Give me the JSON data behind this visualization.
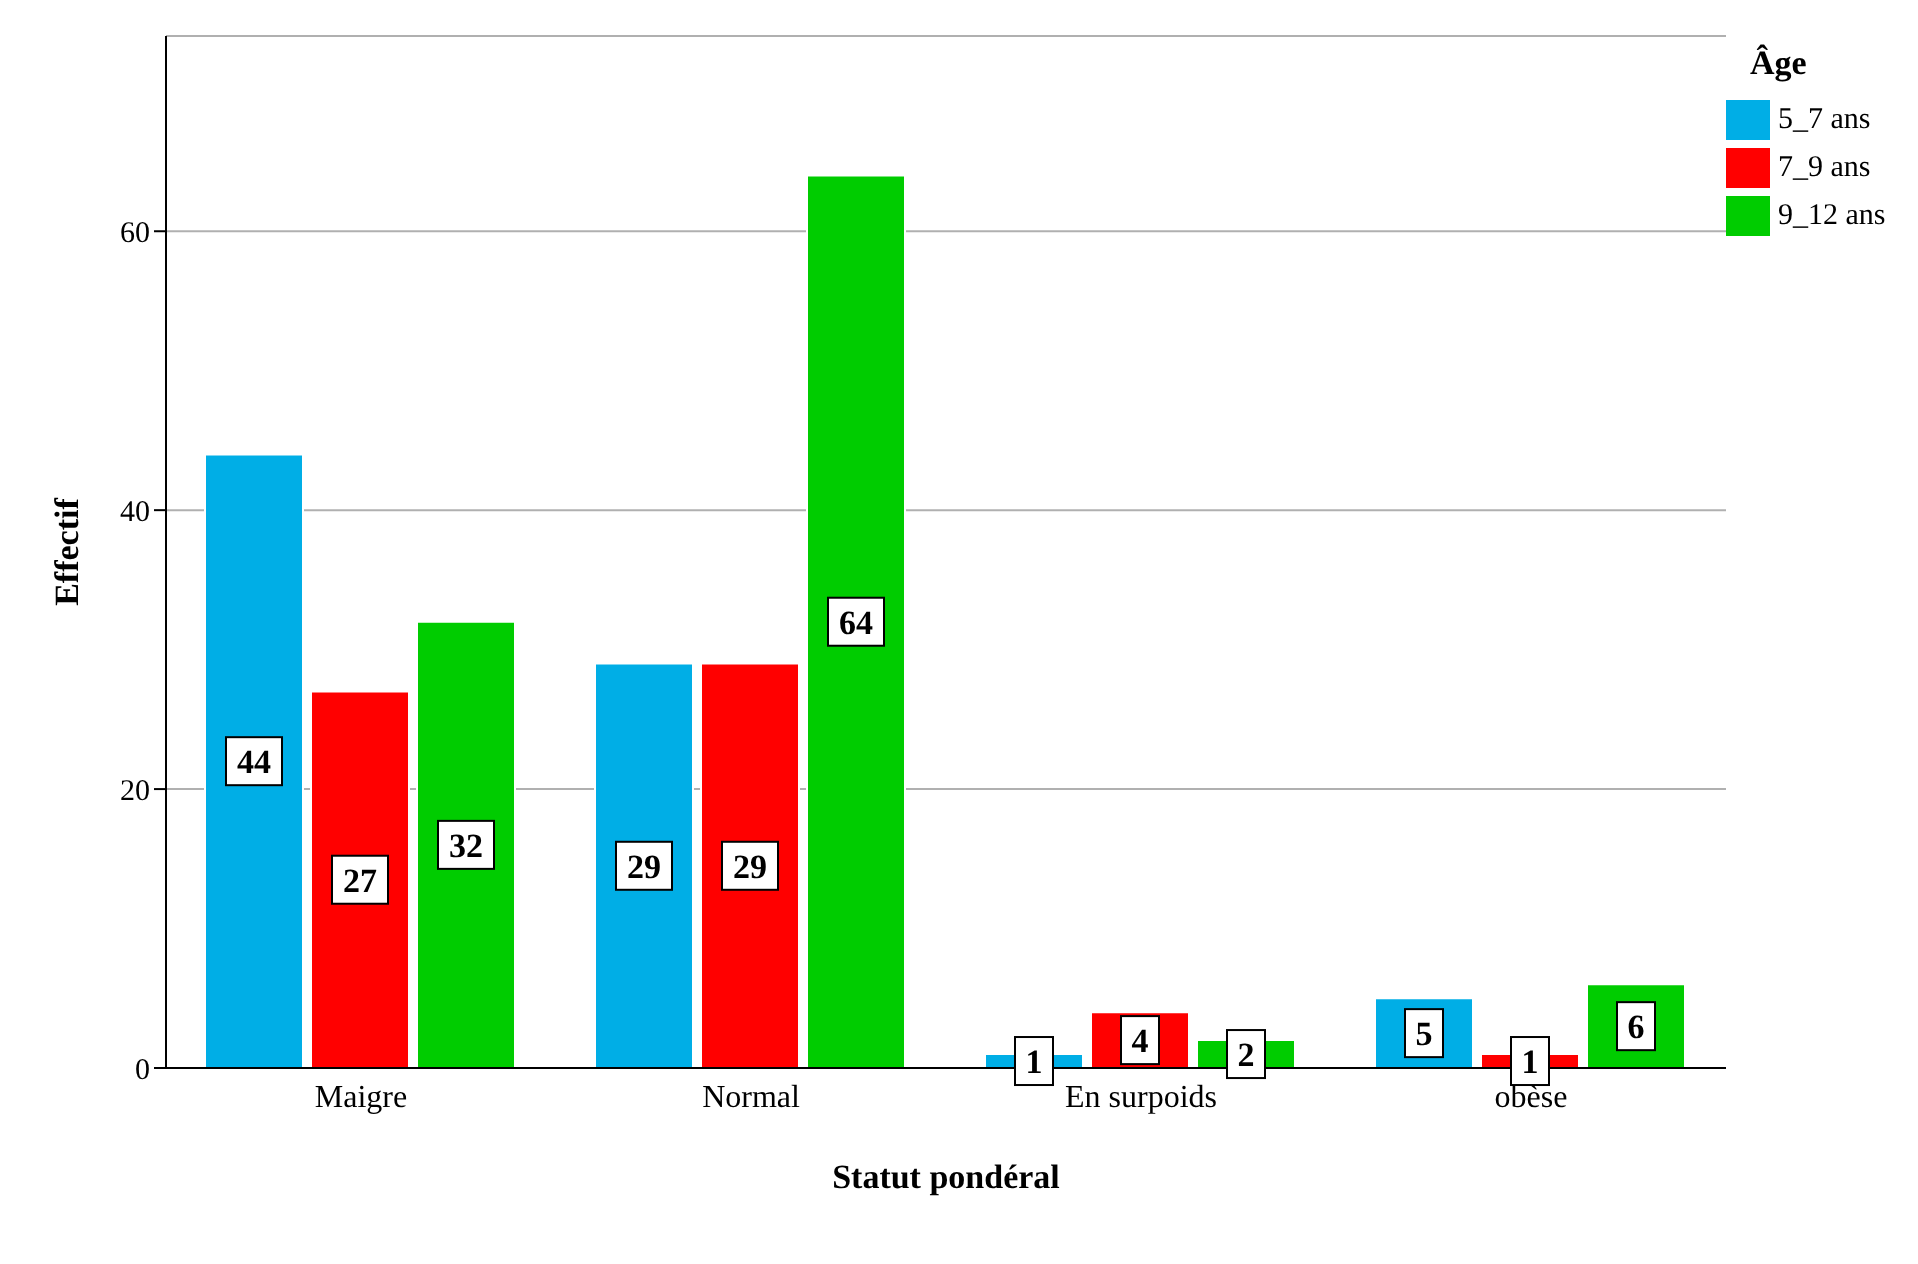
{
  "chart_data": {
    "type": "bar",
    "xlabel": "Statut pondéral",
    "ylabel": "Effectif",
    "legend_title": "Âge",
    "categories": [
      "Maigre",
      "Normal",
      "En surpoids",
      "obèse"
    ],
    "series": [
      {
        "name": "5_7 ans",
        "color": "#00aee6",
        "values": [
          44,
          29,
          1,
          5
        ]
      },
      {
        "name": "7_9 ans",
        "color": "#ff0000",
        "values": [
          27,
          29,
          4,
          1
        ]
      },
      {
        "name": "9_12 ans",
        "color": "#00cc00",
        "values": [
          32,
          64,
          2,
          6
        ]
      }
    ],
    "ylim": [
      0,
      74
    ],
    "yticks": [
      0,
      20,
      40,
      60
    ],
    "grid": "y",
    "legend": "top right",
    "data_labels": true
  }
}
